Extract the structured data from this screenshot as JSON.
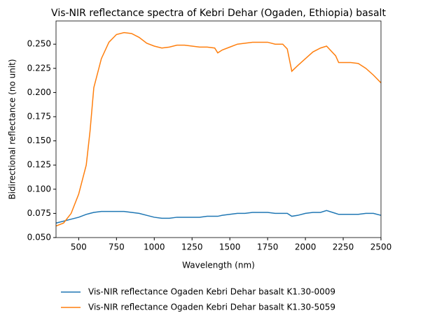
{
  "chart_data": {
    "type": "line",
    "title": "Vis-NIR reflectance spectra of Kebri Dehar (Ogaden, Ethiopia) basalt",
    "x_label": "Wavelength (nm)",
    "y_label": "Bidirectional reflectance (no unit)",
    "x": [
      350,
      400,
      450,
      500,
      550,
      575,
      600,
      650,
      700,
      750,
      800,
      850,
      900,
      950,
      1000,
      1050,
      1100,
      1150,
      1200,
      1250,
      1300,
      1350,
      1400,
      1420,
      1450,
      1500,
      1550,
      1600,
      1650,
      1700,
      1750,
      1800,
      1850,
      1880,
      1910,
      1950,
      2000,
      2050,
      2100,
      2140,
      2200,
      2220,
      2300,
      2350,
      2400,
      2450,
      2500
    ],
    "series": [
      {
        "name": "Vis-NIR reflectance Ogaden Kebri Dehar basalt K1.30-0009",
        "color": "#1f77b4",
        "values": [
          0.065,
          0.067,
          0.069,
          0.071,
          0.074,
          0.075,
          0.076,
          0.077,
          0.077,
          0.077,
          0.077,
          0.076,
          0.075,
          0.073,
          0.071,
          0.07,
          0.07,
          0.071,
          0.071,
          0.071,
          0.071,
          0.072,
          0.072,
          0.072,
          0.073,
          0.074,
          0.075,
          0.075,
          0.076,
          0.076,
          0.076,
          0.075,
          0.075,
          0.075,
          0.072,
          0.073,
          0.075,
          0.076,
          0.076,
          0.078,
          0.075,
          0.074,
          0.074,
          0.074,
          0.075,
          0.075,
          0.073
        ]
      },
      {
        "name": "Vis-NIR reflectance Ogaden Kebri Dehar basalt K1.30-5059",
        "color": "#ff7f0e",
        "values": [
          0.062,
          0.065,
          0.075,
          0.095,
          0.125,
          0.16,
          0.205,
          0.235,
          0.252,
          0.26,
          0.262,
          0.261,
          0.257,
          0.251,
          0.248,
          0.246,
          0.247,
          0.249,
          0.249,
          0.248,
          0.247,
          0.247,
          0.246,
          0.241,
          0.244,
          0.247,
          0.25,
          0.251,
          0.252,
          0.252,
          0.252,
          0.25,
          0.25,
          0.245,
          0.222,
          0.228,
          0.235,
          0.242,
          0.246,
          0.248,
          0.238,
          0.231,
          0.231,
          0.23,
          0.225,
          0.218,
          0.21
        ]
      }
    ],
    "xlim": [
      350,
      2500
    ],
    "ylim": [
      0.05,
      0.274
    ],
    "xticks": [
      500,
      750,
      1000,
      1250,
      1500,
      1750,
      2000,
      2250,
      2500
    ],
    "yticks": [
      {
        "value": 0.05,
        "label": "0.050"
      },
      {
        "value": 0.075,
        "label": "0.075"
      },
      {
        "value": 0.1,
        "label": "0.100"
      },
      {
        "value": 0.125,
        "label": "0.125"
      },
      {
        "value": 0.15,
        "label": "0.150"
      },
      {
        "value": 0.175,
        "label": "0.175"
      },
      {
        "value": 0.2,
        "label": "0.200"
      },
      {
        "value": 0.225,
        "label": "0.225"
      },
      {
        "value": 0.25,
        "label": "0.250"
      }
    ],
    "grid": false,
    "legend": "bottom"
  }
}
